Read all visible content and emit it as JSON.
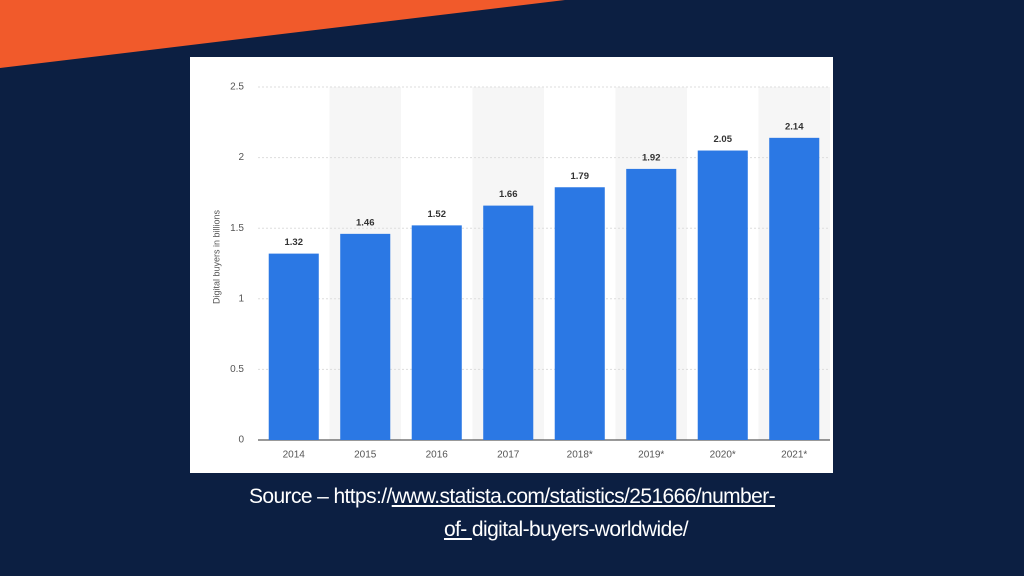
{
  "chart_data": {
    "type": "bar",
    "y_label": "Digital buyers in billions",
    "categories": [
      "2014",
      "2015",
      "2016",
      "2017",
      "2018*",
      "2019*",
      "2020*",
      "2021*"
    ],
    "values": [
      1.32,
      1.46,
      1.52,
      1.66,
      1.79,
      1.92,
      2.05,
      2.14
    ],
    "color": "#2b78e4",
    "ylim": [
      0,
      2.5
    ],
    "yticks": [
      0,
      0.5,
      1,
      1.5,
      2,
      2.5
    ],
    "grid": true
  },
  "source": {
    "prefix": "Source – https://",
    "link_line1": "www.statista.com/statistics/251666/number-",
    "link_line2": "of- ",
    "suffix": "digital-buyers-worldwide/"
  }
}
